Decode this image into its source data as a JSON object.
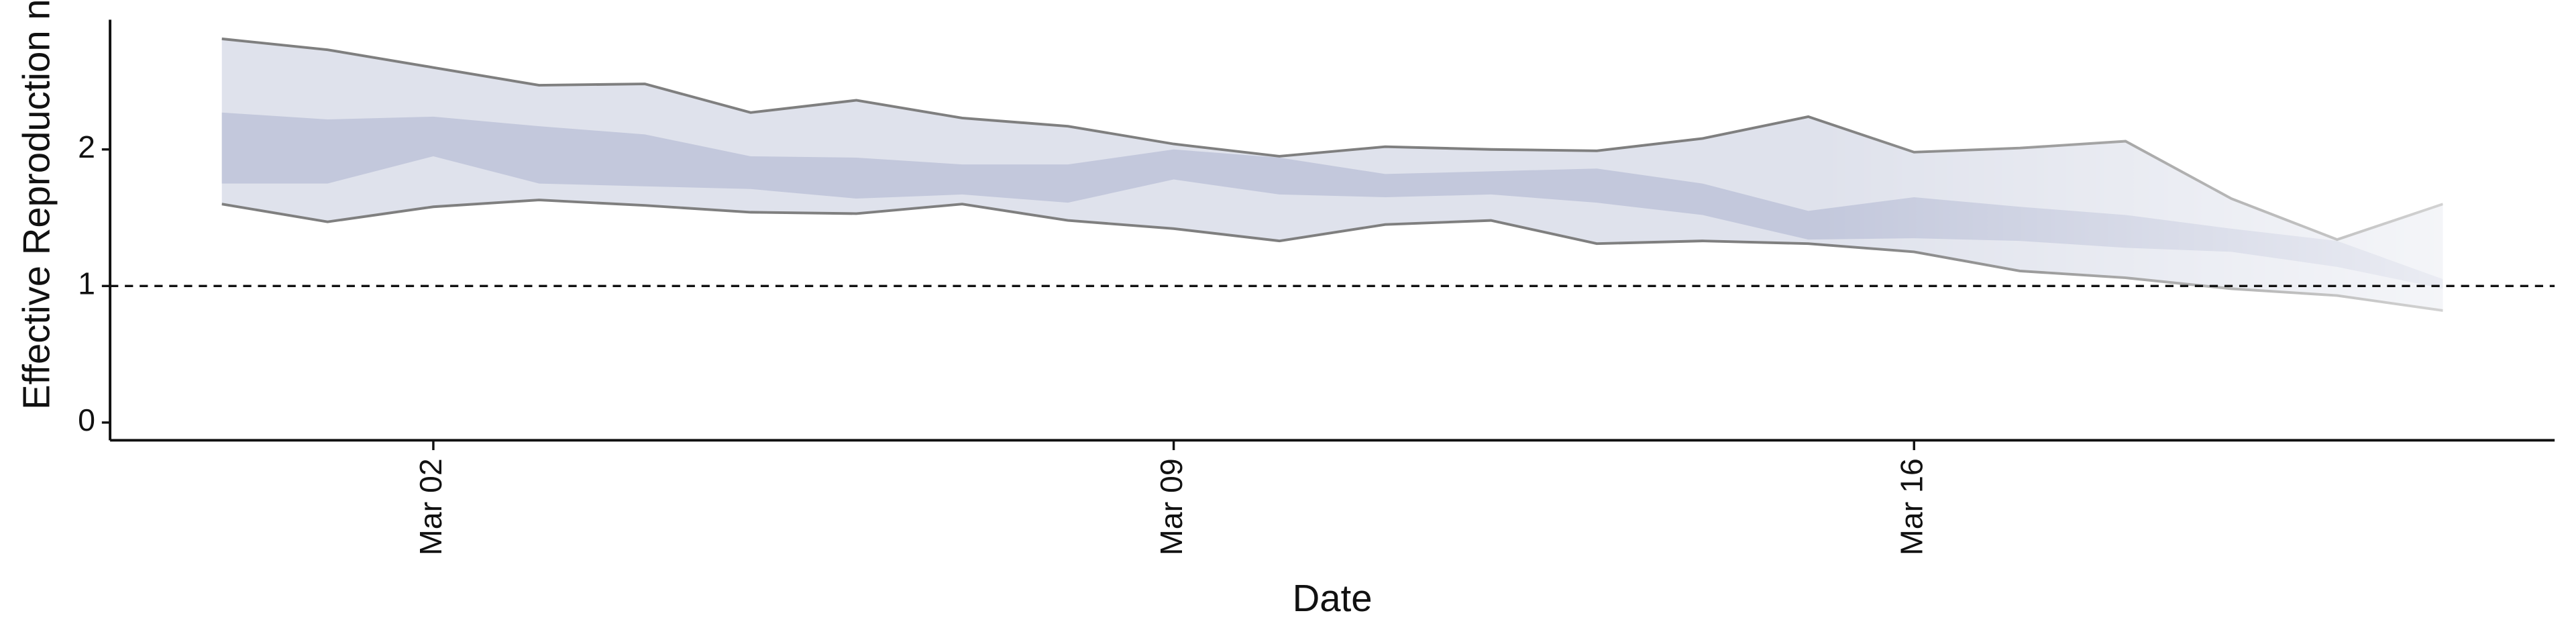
{
  "chart_data": {
    "type": "band",
    "y_label": "Effective Reproduction no",
    "x_label": "Date",
    "x": [
      "Feb 29",
      "Mar 01",
      "Mar 02",
      "Mar 03",
      "Mar 04",
      "Mar 05",
      "Mar 06",
      "Mar 07",
      "Mar 08",
      "Mar 09",
      "Mar 10",
      "Mar 11",
      "Mar 12",
      "Mar 13",
      "Mar 14",
      "Mar 15",
      "Mar 16",
      "Mar 17",
      "Mar 18",
      "Mar 19",
      "Mar 20",
      "Mar 21"
    ],
    "xticks": [
      "Mar 02",
      "Mar 09",
      "Mar 16"
    ],
    "ylim": [
      -0.13,
      2.95
    ],
    "yticks": [
      0,
      1,
      2
    ],
    "hline": 1,
    "bands": [
      {
        "color": "#dfe2ec",
        "line_color": "#7f7f7f",
        "upper": [
          2.81,
          2.73,
          2.6,
          2.47,
          2.48,
          2.27,
          2.36,
          2.23,
          2.17,
          2.04,
          1.95,
          2.02,
          2.0,
          1.99,
          2.08,
          2.24,
          1.98,
          2.01,
          2.06,
          1.64,
          1.34,
          1.6
        ],
        "lower": [
          1.6,
          1.47,
          1.58,
          1.63,
          1.59,
          1.54,
          1.53,
          1.6,
          1.48,
          1.42,
          1.33,
          1.45,
          1.48,
          1.31,
          1.33,
          1.31,
          1.25,
          1.11,
          1.06,
          0.98,
          0.93,
          0.82
        ]
      },
      {
        "color": "#c3c8dc",
        "upper": [
          2.27,
          2.22,
          2.24,
          2.17,
          2.11,
          1.95,
          1.94,
          1.89,
          1.89,
          2.0,
          1.94,
          1.82,
          1.84,
          1.86,
          1.75,
          1.55,
          1.65,
          1.58,
          1.52,
          1.42,
          1.33,
          1.05
        ],
        "lower": [
          1.75,
          1.75,
          1.95,
          1.75,
          1.73,
          1.71,
          1.64,
          1.67,
          1.61,
          1.78,
          1.67,
          1.65,
          1.67,
          1.61,
          1.52,
          1.34,
          1.35,
          1.33,
          1.28,
          1.25,
          1.14,
          0.98
        ]
      }
    ]
  }
}
